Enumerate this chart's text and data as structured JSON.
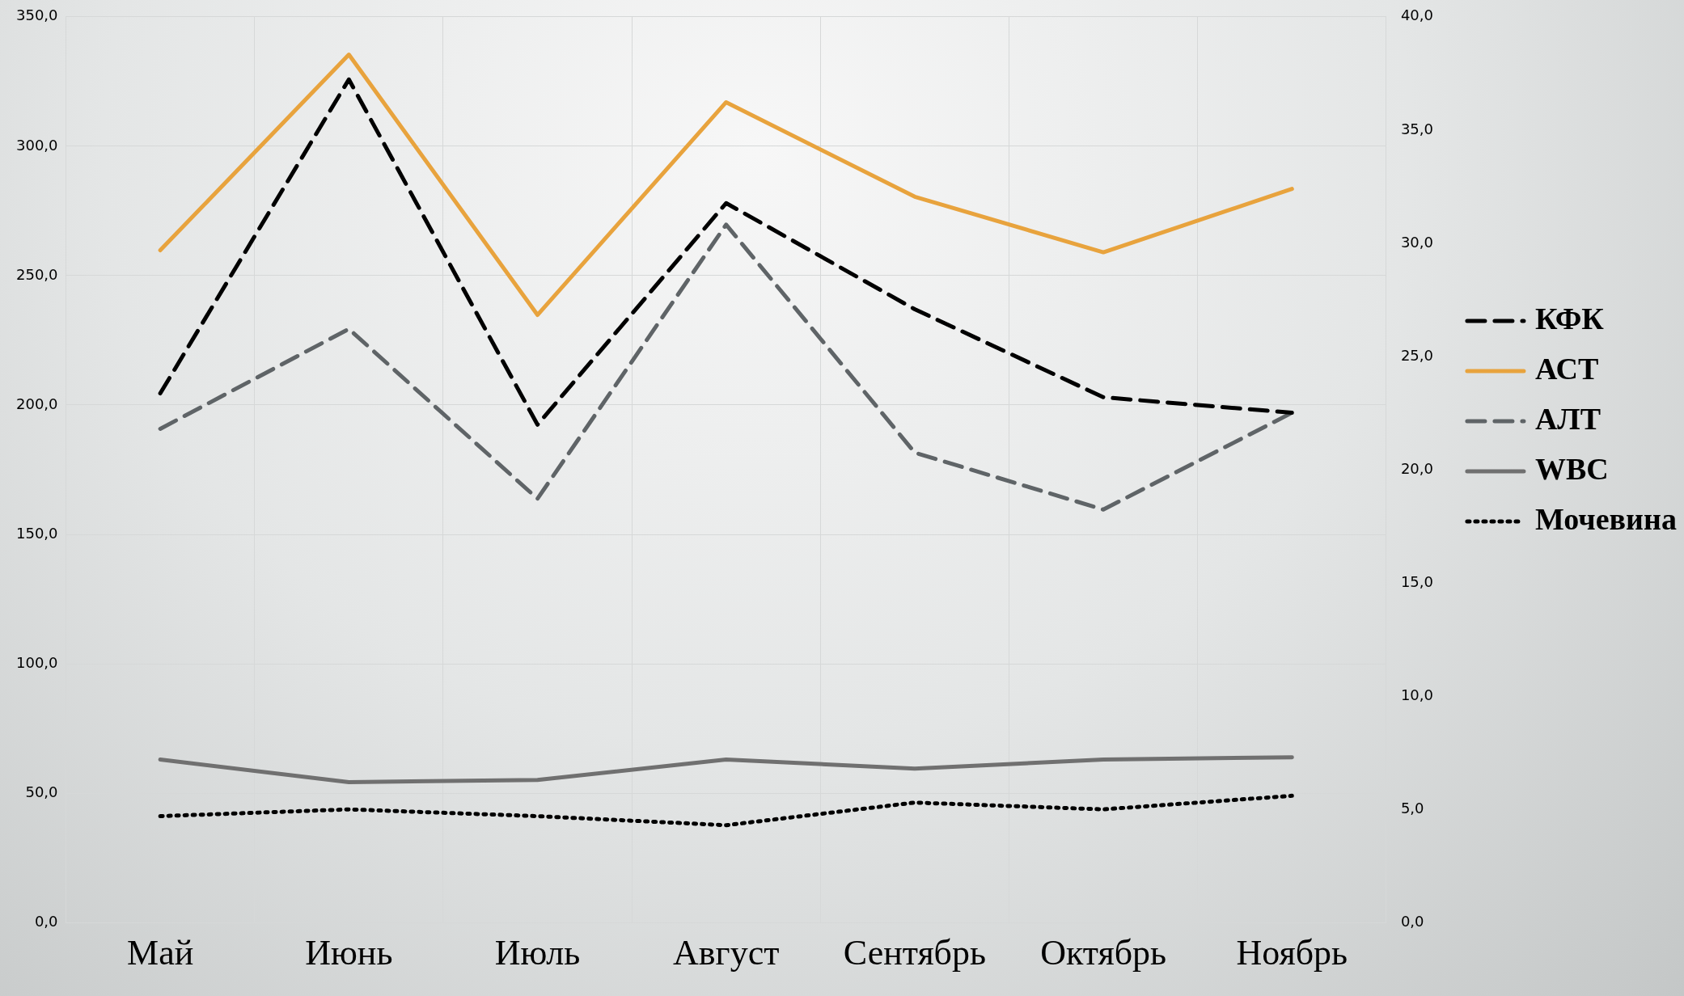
{
  "chart_data": {
    "type": "line",
    "categories": [
      "Май",
      "Июнь",
      "Июль",
      "Август",
      "Сентябрь",
      "Октябрь",
      "Ноябрь"
    ],
    "series": [
      {
        "name": "КФК",
        "color": "#000000",
        "line_style": "dashed",
        "values": [
          204.5,
          325.8,
          192.4,
          278,
          237,
          203,
          197
        ]
      },
      {
        "name": "АСТ",
        "color": "#e8a33d",
        "line_style": "solid",
        "values": [
          259.8,
          335.4,
          234.8,
          317,
          280.5,
          259,
          283.5
        ]
      },
      {
        "name": "АЛТ",
        "color": "#5f6467",
        "line_style": "dashed",
        "values": [
          190.8,
          229.4,
          163.8,
          269.7,
          181.6,
          159.6,
          197
        ]
      },
      {
        "name": "WBC",
        "color": "#707070",
        "line_style": "solid",
        "axis": "y2",
        "values": [
          7.2,
          6.2,
          6.3,
          7.2,
          6.8,
          7.2,
          7.3
        ]
      },
      {
        "name": "Мочевина",
        "color": "#000000",
        "line_style": "dotted",
        "axis": "y2",
        "values": [
          4.7,
          5.0,
          4.7,
          4.3,
          5.3,
          5.0,
          5.6
        ]
      }
    ],
    "ylim": [
      0,
      350
    ],
    "yticks": [
      {
        "value": 0,
        "label": "0,0"
      },
      {
        "value": 50,
        "label": "50,0"
      },
      {
        "value": 100,
        "label": "100,0"
      },
      {
        "value": 150,
        "label": "150,0"
      },
      {
        "value": 200,
        "label": "200,0"
      },
      {
        "value": 250,
        "label": "250,0"
      },
      {
        "value": 300,
        "label": "300,0"
      },
      {
        "value": 350,
        "label": "350,0"
      }
    ],
    "y2lim": [
      0,
      40
    ],
    "y2ticks": [
      {
        "value": 0,
        "label": "0,0"
      },
      {
        "value": 5,
        "label": "5,0"
      },
      {
        "value": 10,
        "label": "10,0"
      },
      {
        "value": 15,
        "label": "15,0"
      },
      {
        "value": 20,
        "label": "20,0"
      },
      {
        "value": 25,
        "label": "25,0"
      },
      {
        "value": 30,
        "label": "30,0"
      },
      {
        "value": 35,
        "label": "35,0"
      },
      {
        "value": 40,
        "label": "40,0"
      }
    ],
    "grid": true,
    "legend": "right",
    "marker": "none"
  }
}
